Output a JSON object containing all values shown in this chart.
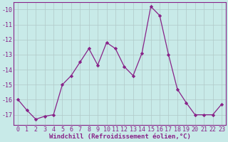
{
  "x": [
    0,
    1,
    2,
    3,
    4,
    5,
    6,
    7,
    8,
    9,
    10,
    11,
    12,
    13,
    14,
    15,
    16,
    17,
    18,
    19,
    20,
    21,
    22,
    23
  ],
  "y": [
    -16.0,
    -16.7,
    -17.3,
    -17.1,
    -17.0,
    -15.0,
    -14.4,
    -13.5,
    -12.6,
    -13.7,
    -12.2,
    -12.6,
    -13.8,
    -14.4,
    -12.9,
    -9.8,
    -10.4,
    -13.0,
    -15.3,
    -16.2,
    -17.0,
    -17.0,
    -17.0,
    -16.3
  ],
  "line_color": "#882288",
  "marker": "D",
  "marker_size": 2.2,
  "bg_color": "#C8EAE8",
  "grid_major_color": "#B0C8C8",
  "grid_minor_color": "#B0C8C8",
  "xlabel": "Windchill (Refroidissement éolien,°C)",
  "ylim": [
    -17.7,
    -9.5
  ],
  "xlim": [
    -0.5,
    23.5
  ],
  "yticks": [
    -17,
    -16,
    -15,
    -14,
    -13,
    -12,
    -11,
    -10
  ],
  "xticks": [
    0,
    1,
    2,
    3,
    4,
    5,
    6,
    7,
    8,
    9,
    10,
    11,
    12,
    13,
    14,
    15,
    16,
    17,
    18,
    19,
    20,
    21,
    22,
    23
  ],
  "xlabel_fontsize": 6.5,
  "tick_fontsize": 6.0,
  "linewidth": 0.9
}
